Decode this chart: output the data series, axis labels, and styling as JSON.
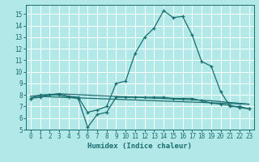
{
  "xlabel": "Humidex (Indice chaleur)",
  "bg_color": "#b3e8e8",
  "line_color": "#1a6e6e",
  "grid_color": "#ffffff",
  "xlim": [
    -0.5,
    23.5
  ],
  "ylim": [
    5,
    15.8
  ],
  "yticks": [
    5,
    6,
    7,
    8,
    9,
    10,
    11,
    12,
    13,
    14,
    15
  ],
  "xticks": [
    0,
    1,
    2,
    3,
    4,
    5,
    6,
    7,
    8,
    9,
    10,
    11,
    12,
    13,
    14,
    15,
    16,
    17,
    18,
    19,
    20,
    21,
    22,
    23
  ],
  "curve1_x": [
    0,
    1,
    2,
    3,
    4,
    5,
    6,
    7,
    8,
    9,
    10,
    11,
    12,
    13,
    14,
    15,
    16,
    17,
    18,
    19,
    20,
    21,
    22,
    23
  ],
  "curve1_y": [
    7.7,
    8.0,
    8.0,
    8.1,
    7.9,
    7.8,
    6.5,
    6.7,
    7.0,
    9.0,
    9.2,
    11.6,
    13.0,
    13.8,
    15.3,
    14.7,
    14.8,
    13.2,
    10.9,
    10.5,
    8.3,
    7.0,
    7.0,
    6.8
  ],
  "curve2_x": [
    0,
    1,
    2,
    3,
    4,
    5,
    6,
    7,
    8,
    9,
    10,
    11,
    12,
    13,
    14,
    15,
    16,
    17,
    18,
    19,
    20,
    21,
    22,
    23
  ],
  "curve2_y": [
    7.7,
    7.8,
    8.0,
    8.0,
    7.8,
    7.7,
    5.2,
    6.3,
    6.5,
    7.8,
    7.8,
    7.8,
    7.8,
    7.8,
    7.8,
    7.7,
    7.7,
    7.7,
    7.5,
    7.3,
    7.2,
    7.1,
    6.9,
    6.8
  ],
  "curve3_x": [
    0,
    3,
    19,
    23
  ],
  "curve3_y": [
    7.9,
    8.1,
    7.5,
    7.2
  ],
  "curve4_x": [
    0,
    23
  ],
  "curve4_y": [
    7.9,
    7.2
  ]
}
